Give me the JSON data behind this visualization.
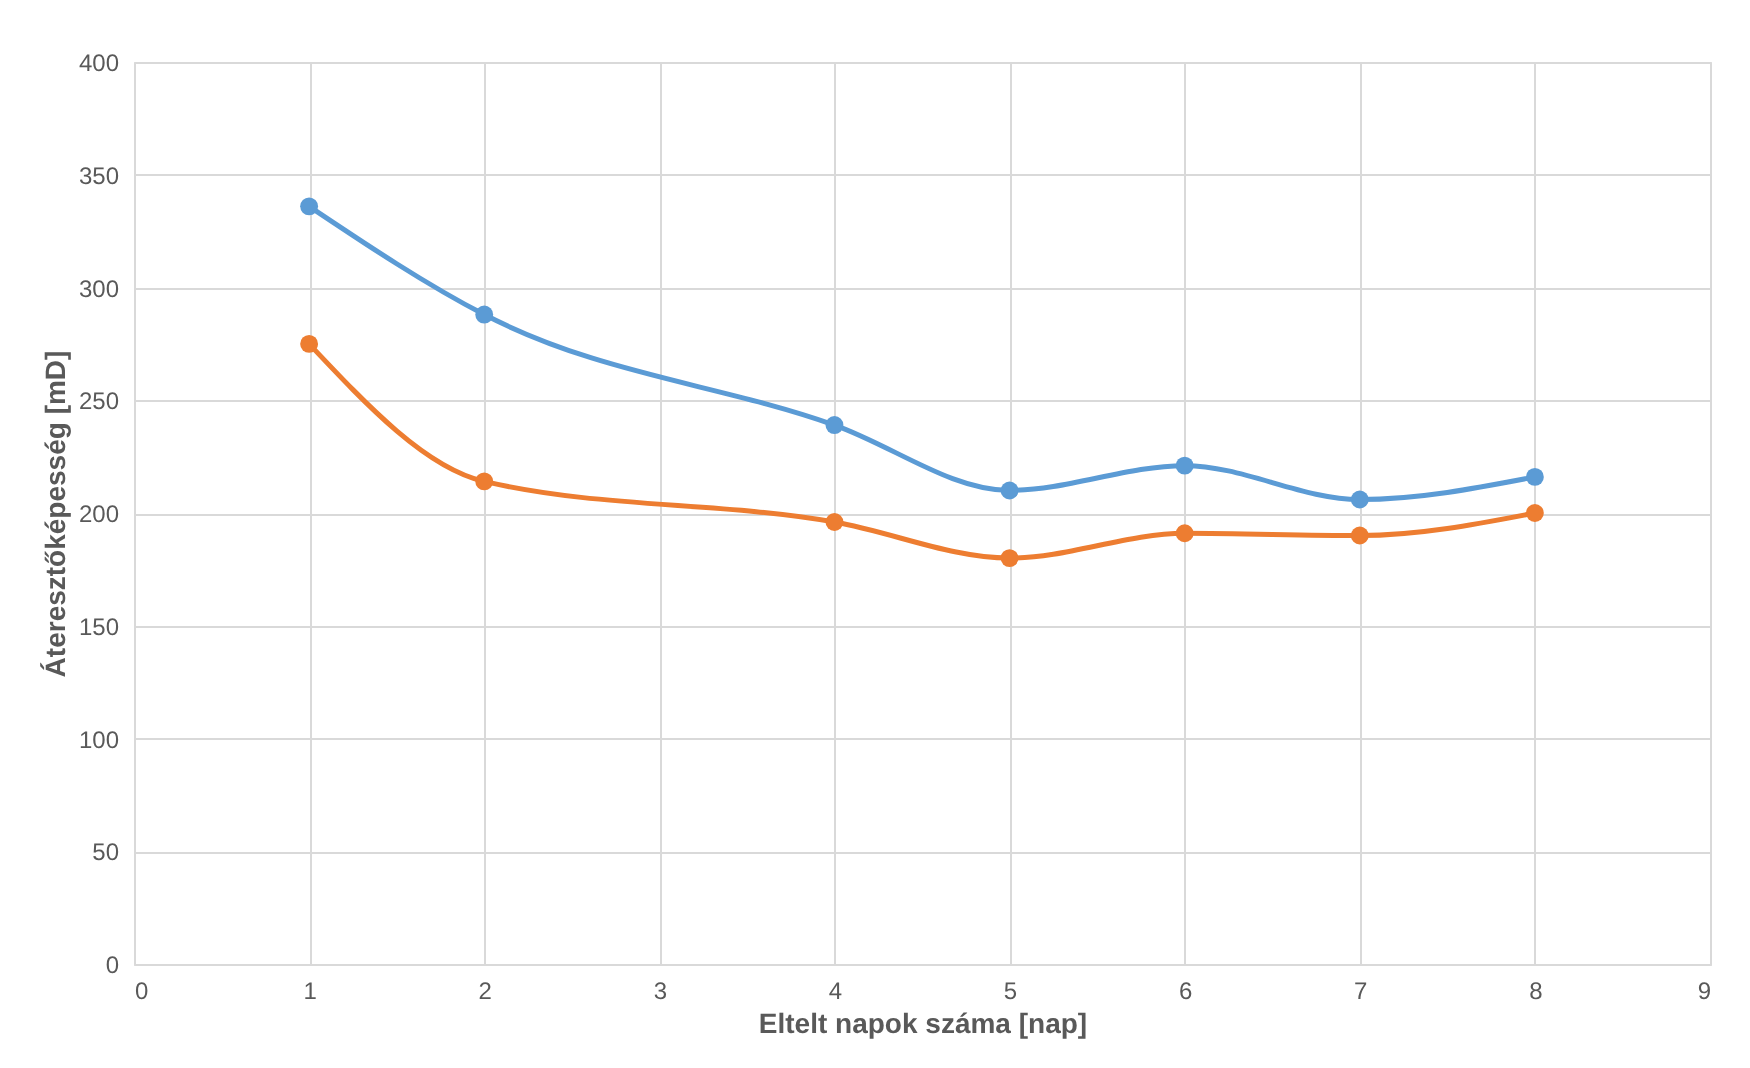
{
  "chart_data": {
    "type": "line",
    "xlabel": "Eltelt napok száma [nap]",
    "ylabel": "Áteresztőképesség [mD]",
    "x": [
      1,
      2,
      4,
      5,
      6,
      7,
      8
    ],
    "series": [
      {
        "color": "#5b9bd5",
        "values": [
          336,
          288,
          239,
          210,
          221,
          206,
          216
        ]
      },
      {
        "color": "#ed7d31",
        "values": [
          275,
          214,
          196,
          180,
          191,
          190,
          200
        ]
      }
    ],
    "xlim": [
      0,
      9
    ],
    "xticks": [
      0,
      1,
      2,
      3,
      4,
      5,
      6,
      7,
      8,
      9
    ],
    "ylim": [
      0,
      400
    ],
    "yticks": [
      0,
      50,
      100,
      150,
      200,
      250,
      300,
      350,
      400
    ],
    "grid": true,
    "legend": false,
    "marker": "circle",
    "line_style": "solid"
  }
}
